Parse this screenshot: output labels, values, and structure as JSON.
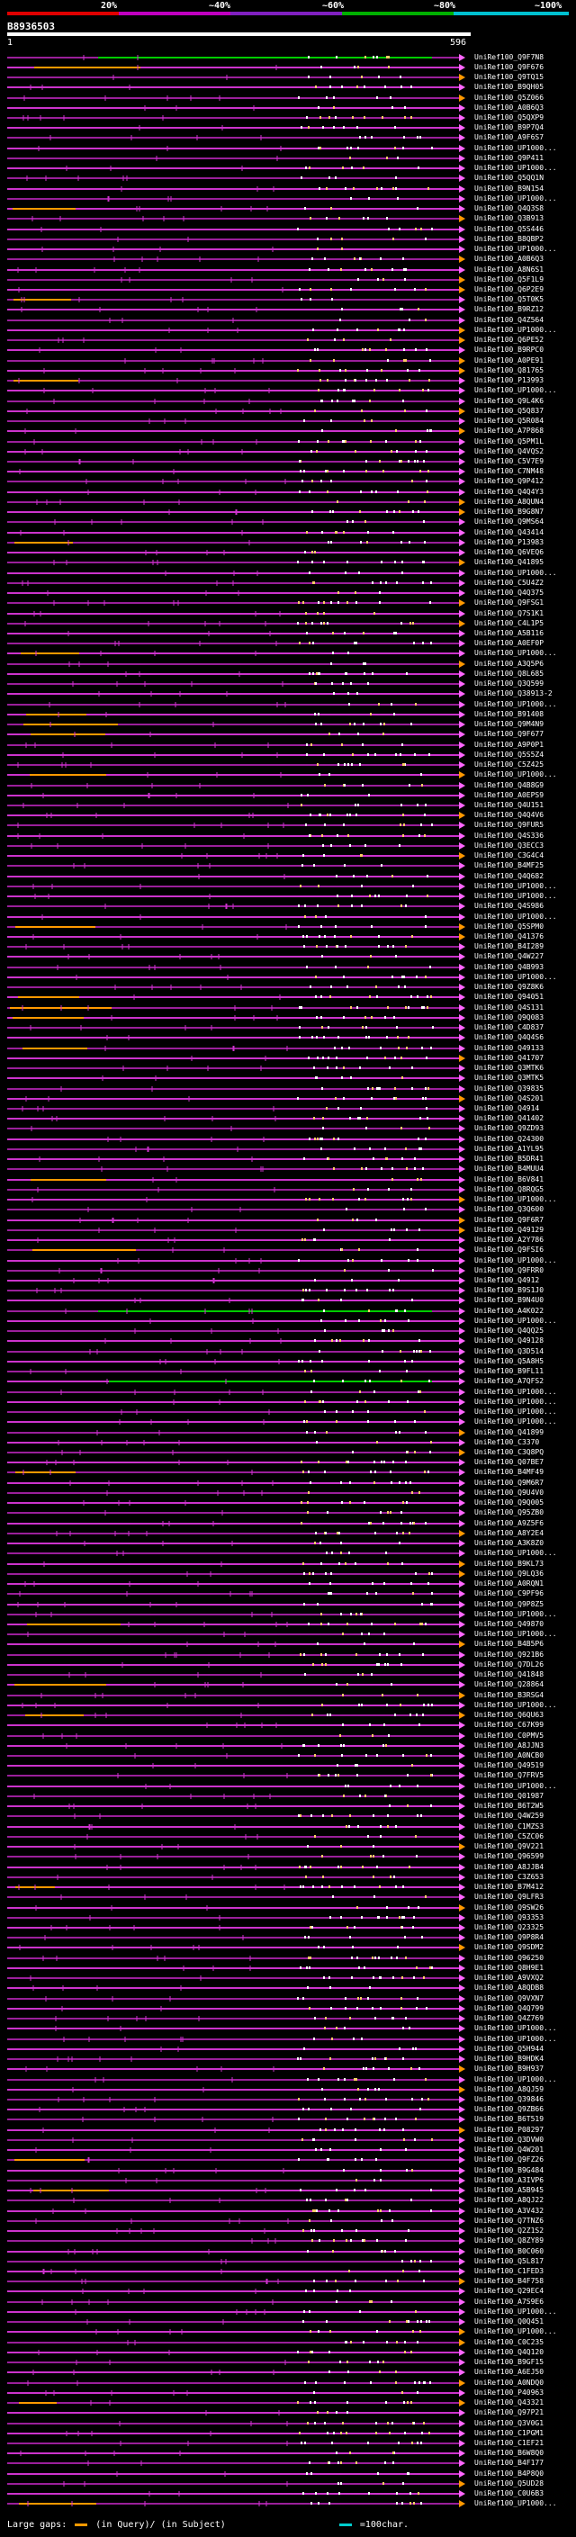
{
  "scale": {
    "labels": [
      "20%",
      "~40%",
      "~60%",
      "~80%",
      "~100%"
    ],
    "colors": [
      "#e00000",
      "#c000c0",
      "#8020c0",
      "#00b000",
      "#00c0d0"
    ]
  },
  "query": {
    "id": "B8936503",
    "start": "1",
    "end": "596"
  },
  "colors": {
    "hit_line": "#cc33cc",
    "hit_line_dark": "#9a1f9a",
    "green_hit": "#00cc00",
    "gap_query": "#ff9900",
    "hsp_mark": "#ffffff",
    "arrow": "#ff66ff"
  },
  "hits": [
    "UniRef100_Q9F7N8",
    "UniRef100_Q9F676",
    "UniRef100_Q9TQ15",
    "UniRef100_B9QH05",
    "UniRef100_Q5Z066",
    "UniRef100_A0B6Q3",
    "UniRef100_Q5QXP9",
    "UniRef100_B9P7Q4",
    "UniRef100_A9F6S7",
    "UniRef100_UP1000...",
    "UniRef100_Q9P411",
    "UniRef100_UP1000...",
    "UniRef100_Q5QQ1N",
    "UniRef100_B9N154",
    "UniRef100_UP1000...",
    "UniRef100_Q4Q3S8",
    "UniRef100_Q3B913",
    "UniRef100_Q5S446",
    "UniRef100_B8QBP2",
    "UniRef100_UP1000...",
    "UniRef100_A0B6Q3",
    "UniRef100_A8N6S1",
    "UniRef100_Q5F1L9",
    "UniRef100_Q6P2E9",
    "UniRef100_Q5T0K5",
    "UniRef100_B9RZ12",
    "UniRef100_Q4Z564",
    "UniRef100_UP1000...",
    "UniRef100_Q6PE52",
    "UniRef100_B9RPC0",
    "UniRef100_A0PE91",
    "UniRef100_Q81765",
    "UniRef100_P13993",
    "UniRef100_UP1000...",
    "UniRef100_Q9L4K6",
    "UniRef100_Q5Q837",
    "UniRef100_Q5R084",
    "UniRef100_A7P868",
    "UniRef100_Q5PM1L",
    "UniRef100_Q4VQS2",
    "UniRef100_C5V7E9",
    "UniRef100_C7NM48",
    "UniRef100_Q9P412",
    "UniRef100_Q4Q4Y3",
    "UniRef100_A8QUN4",
    "UniRef100_B9G8N7",
    "UniRef100_Q9MS64",
    "UniRef100_Q43414",
    "UniRef100_P13983",
    "UniRef100_Q6VEQ6",
    "UniRef100_Q41895",
    "UniRef100_UP1000...",
    "UniRef100_C5U4Z2",
    "UniRef100_Q4Q375",
    "UniRef100_Q9FSG1",
    "UniRef100_Q7S1K1",
    "UniRef100_C4L1P5",
    "UniRef100_A5B116",
    "UniRef100_A0EF0P",
    "UniRef100_UP1000...",
    "UniRef100_A3Q5P6",
    "UniRef100_Q8L685",
    "UniRef100_Q3Q599",
    "UniRef100_Q38913-2",
    "UniRef100_UP1000...",
    "UniRef100_B91408",
    "UniRef100_Q9M4N9",
    "UniRef100_Q9F677",
    "UniRef100_A9P0P1",
    "UniRef100_Q5S5Z4",
    "UniRef100_C5Z425",
    "UniRef100_UP1000...",
    "UniRef100_Q4B8G9",
    "UniRef100_A0EPS9",
    "UniRef100_Q4U151",
    "UniRef100_Q4Q4V6",
    "UniRef100_Q9FUR5",
    "UniRef100_Q4S336",
    "UniRef100_Q3ECC3",
    "UniRef100_C3G4C4",
    "UniRef100_B4MF25",
    "UniRef100_Q4Q682",
    "UniRef100_UP1000...",
    "UniRef100_UP1000...",
    "UniRef100_Q4S986",
    "UniRef100_UP1000...",
    "UniRef100_Q5SPM0",
    "UniRef100_Q41376",
    "UniRef100_B4I289",
    "UniRef100_Q4W227",
    "UniRef100_Q4B993",
    "UniRef100_UP1000...",
    "UniRef100_Q9Z8K6",
    "UniRef100_Q94051",
    "UniRef100_Q4S131",
    "UniRef100_Q9Q083",
    "UniRef100_C4D837",
    "UniRef100_Q4Q4S6",
    "UniRef100_Q49133",
    "UniRef100_Q41707",
    "UniRef100_Q3MTK6",
    "UniRef100_Q3MTK5",
    "UniRef100_Q39835",
    "UniRef100_Q4S201",
    "UniRef100_Q4914",
    "UniRef100_Q41402",
    "UniRef100_Q9ZD93",
    "UniRef100_Q24300",
    "UniRef100_A1YL95",
    "UniRef100_B5DR41",
    "UniRef100_B4MUU4",
    "UniRef100_B6V841",
    "UniRef100_Q8RQG5",
    "UniRef100_UP1000...",
    "UniRef100_Q3Q600",
    "UniRef100_Q9F6R7",
    "UniRef100_Q49129",
    "UniRef100_A2Y786",
    "UniRef100_Q9FSI6",
    "UniRef100_UP1000...",
    "UniRef100_Q9FRR0",
    "UniRef100_Q4912",
    "UniRef100_B9S1J0",
    "UniRef100_B9N4U0",
    "UniRef100_A4K022",
    "UniRef100_UP1000...",
    "UniRef100_Q4QQ25",
    "UniRef100_Q49128",
    "UniRef100_Q3D514",
    "UniRef100_Q5A8H5",
    "UniRef100_B9FL11",
    "UniRef100_A7QFS2",
    "UniRef100_UP1000...",
    "UniRef100_UP1000...",
    "UniRef100_UP1000...",
    "UniRef100_UP1000...",
    "UniRef100_Q41899",
    "UniRef100_C3370",
    "UniRef100_C3Q8PQ",
    "UniRef100_Q07BE7",
    "UniRef100_B4MF49",
    "UniRef100_Q9M6R7",
    "UniRef100_Q9U4V0",
    "UniRef100_Q9Q005",
    "UniRef100_Q95ZB0",
    "UniRef100_A9Z5F6",
    "UniRef100_A8Y2E4",
    "UniRef100_A3K8Z0",
    "UniRef100_UP1000...",
    "UniRef100_B9KL73",
    "UniRef100_Q9LQ36",
    "UniRef100_A0RQN1",
    "UniRef100_C9PF96",
    "UniRef100_Q9P8Z5",
    "UniRef100_UP1000...",
    "UniRef100_Q49870",
    "UniRef100_UP1000...",
    "UniRef100_B4B5P6",
    "UniRef100_Q921B6",
    "UniRef100_Q7DL26",
    "UniRef100_Q41848",
    "UniRef100_Q28864",
    "UniRef100_B3RSG4",
    "UniRef100_UP1000...",
    "UniRef100_Q6QU63",
    "UniRef100_C67K99",
    "UniRef100_C0PMV5",
    "UniRef100_A8JJN3",
    "UniRef100_A0NCB0",
    "UniRef100_Q49519",
    "UniRef100_Q7FRV5",
    "UniRef100_UP1000...",
    "UniRef100_Q01987",
    "UniRef100_B6T2W5",
    "UniRef100_Q4W259",
    "UniRef100_C1MZS3",
    "UniRef100_C5ZC06",
    "UniRef100_Q9V221",
    "UniRef100_Q96599",
    "UniRef100_A8JJB4",
    "UniRef100_C3Z653",
    "UniRef100_B7M412",
    "UniRef100_Q9LFR3",
    "UniRef100_Q9SW26",
    "UniRef100_Q93353",
    "UniRef100_Q23325",
    "UniRef100_Q9P8R4",
    "UniRef100_Q9SDM2",
    "UniRef100_Q96250",
    "UniRef100_Q8H9E1",
    "UniRef100_A9VXQ2",
    "UniRef100_A8QDB8",
    "UniRef100_Q9VXN7",
    "UniRef100_Q4Q799",
    "UniRef100_Q4Z769",
    "UniRef100_UP1000...",
    "UniRef100_UP1000...",
    "UniRef100_Q5H944",
    "UniRef100_B9HDK4",
    "UniRef100_B9H937",
    "UniRef100_UP1000...",
    "UniRef100_A8QJ59",
    "UniRef100_Q39846",
    "UniRef100_Q9ZB66",
    "UniRef100_B6T519",
    "UniRef100_P08297",
    "UniRef100_Q3DVW0",
    "UniRef100_Q4W201",
    "UniRef100_Q9FZ26",
    "UniRef100_B9G484",
    "UniRef100_A3IVP6",
    "UniRef100_A5B945",
    "UniRef100_A8QJ22",
    "UniRef100_A3V432",
    "UniRef100_Q7TNZ6",
    "UniRef100_Q2Z1S2",
    "UniRef100_Q8ZY89",
    "UniRef100_B0C060",
    "UniRef100_Q5L817",
    "UniRef100_C1FED3",
    "UniRef100_B4F758",
    "UniRef100_Q29EC4",
    "UniRef100_A7S9E6",
    "UniRef100_UP1000...",
    "UniRef100_Q0Q451",
    "UniRef100_UP1000...",
    "UniRef100_C0C235",
    "UniRef100_Q4Q120",
    "UniRef100_B9GF15",
    "UniRef100_A6EJ50",
    "UniRef100_A0NDQ0",
    "UniRef100_P40963",
    "UniRef100_Q43321",
    "UniRef100_Q97P21",
    "UniRef100_Q3V0G1",
    "UniRef100_C1PGM1",
    "UniRef100_C1EF21",
    "UniRef100_B6W8Q0",
    "UniRef100_B4F177",
    "UniRef100_B4P8Q0",
    "UniRef100_Q5UD28",
    "UniRef100_C0U6B3",
    "UniRef100_UP1000..."
  ],
  "legend": {
    "title": "Large gaps:",
    "query_label": "(in Query)/",
    "subject_label": "(in Subject)",
    "scale_label": "=100char."
  }
}
